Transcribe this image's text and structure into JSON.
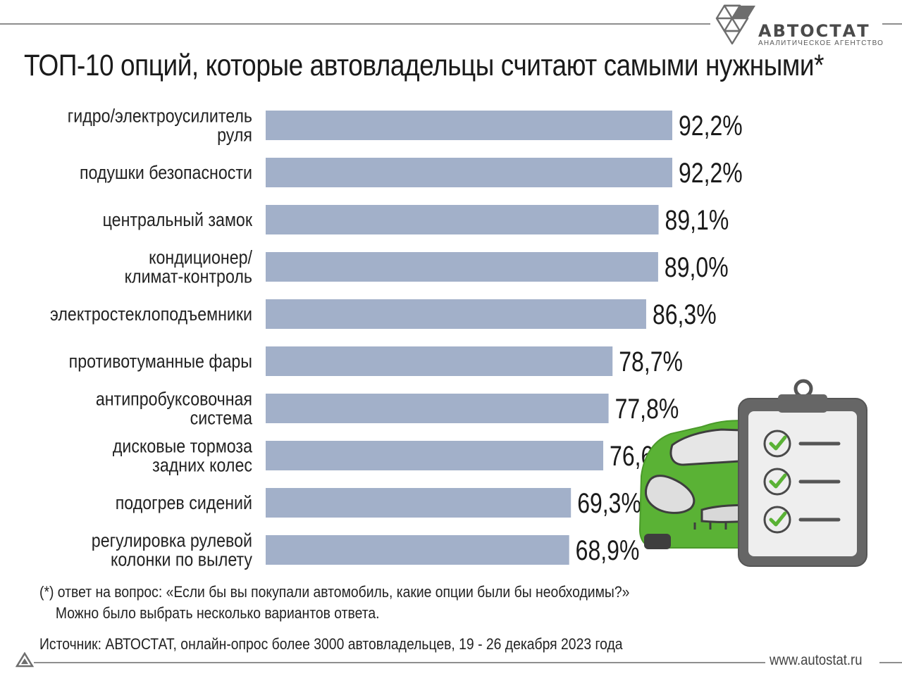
{
  "brand": {
    "name": "АВТОСТАТ",
    "tagline": "АНАЛИТИЧЕСКОЕ АГЕНТСТВО",
    "accent_color": "#4a4a4a"
  },
  "title": "ТОП-10 опций, которые автовладельцы считают самыми нужными*",
  "chart_data": {
    "type": "bar",
    "orientation": "horizontal",
    "title": "ТОП-10 опций, которые автовладельцы считают самыми нужными*",
    "categories": [
      [
        "гидро/электроусилитель",
        "руля"
      ],
      [
        "подушки безопасности"
      ],
      [
        "центральный замок"
      ],
      [
        "кондиционер/",
        "климат-контроль"
      ],
      [
        "электростеклоподъемники"
      ],
      [
        "противотуманные фары"
      ],
      [
        "антипробуксовочная",
        "система"
      ],
      [
        "дисковые тормоза",
        "задних колес"
      ],
      [
        "подогрев сидений"
      ],
      [
        "регулировка рулевой",
        "колонки по вылету"
      ]
    ],
    "values": [
      92.2,
      92.2,
      89.1,
      89.0,
      86.3,
      78.7,
      77.8,
      76.6,
      69.3,
      68.9
    ],
    "value_labels": [
      "92,2%",
      "92,2%",
      "89,1%",
      "89,0%",
      "86,3%",
      "78,7%",
      "77,8%",
      "76,6%",
      "69,3%",
      "68,9%"
    ],
    "unit": "%",
    "xlim": [
      0,
      100
    ],
    "grid": false,
    "legend": "none",
    "bar_color": "#a2b0c9",
    "bar_edge_color": "#ffffff"
  },
  "footnote": {
    "line1": "(*) ответ на вопрос: «Если бы вы покупали автомобиль, какие опции были бы необходимы?»",
    "line2": "Можно было выбрать несколько вариантов ответа."
  },
  "source": "Источник: АВТОСТАТ, онлайн-опрос более 3000 автовладельцев, 19 - 26 декабря 2023 года",
  "website": "www.autostat.ru",
  "illustration": {
    "car_icon": "car-icon",
    "clipboard_icon": "clipboard-checklist-icon",
    "car_color": "#5ab235",
    "check_color": "#5ab235",
    "checklist_items": 3
  }
}
